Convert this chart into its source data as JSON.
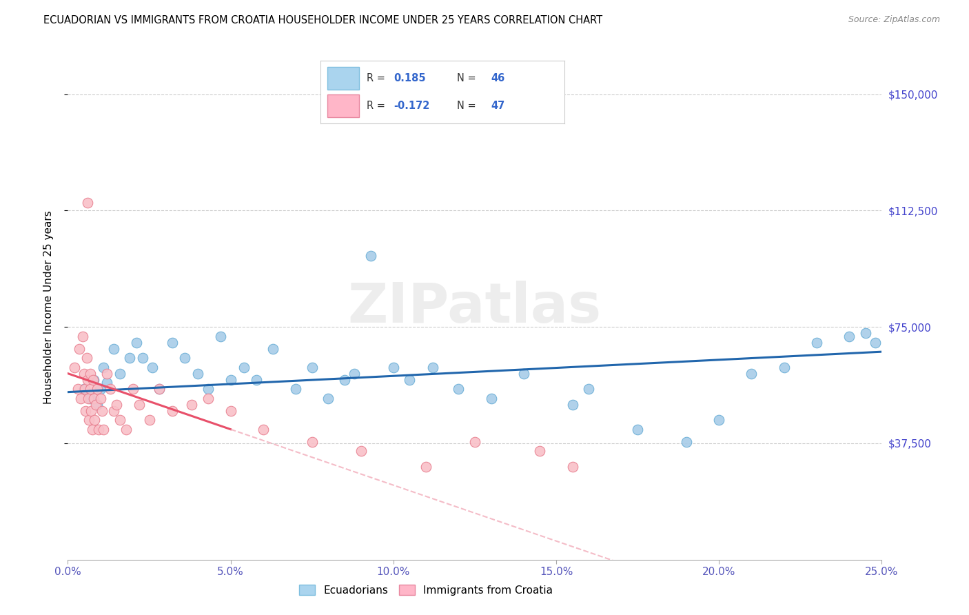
{
  "title": "ECUADORIAN VS IMMIGRANTS FROM CROATIA HOUSEHOLDER INCOME UNDER 25 YEARS CORRELATION CHART",
  "source": "Source: ZipAtlas.com",
  "ylabel": "Householder Income Under 25 years",
  "ytick_labels": [
    "$37,500",
    "$75,000",
    "$112,500",
    "$150,000"
  ],
  "ytick_vals": [
    37500,
    75000,
    112500,
    150000
  ],
  "ylim": [
    0,
    162500
  ],
  "xlim": [
    0,
    25.0
  ],
  "xtick_vals": [
    0,
    5,
    10,
    15,
    20,
    25
  ],
  "xtick_labels": [
    "0.0%",
    "5.0%",
    "10.0%",
    "15.0%",
    "20.0%",
    "25.0%"
  ],
  "blue_scatter_color": "#a8cce8",
  "blue_edge_color": "#6aaed6",
  "pink_scatter_color": "#f9c0c8",
  "pink_edge_color": "#e88090",
  "blue_line_color": "#2166ac",
  "pink_solid_color": "#e8506a",
  "pink_dashed_color": "#f0a0b0",
  "watermark": "ZIPatlas",
  "r_blue": "0.185",
  "n_blue": "46",
  "r_pink": "-0.172",
  "n_pink": "47",
  "ecu_x": [
    0.5,
    0.7,
    0.8,
    0.9,
    1.0,
    1.1,
    1.2,
    1.4,
    1.6,
    1.9,
    2.1,
    2.3,
    2.6,
    2.8,
    3.2,
    3.6,
    4.0,
    4.3,
    4.7,
    5.0,
    5.4,
    5.8,
    6.3,
    7.0,
    7.5,
    8.0,
    8.5,
    9.3,
    10.0,
    10.5,
    11.2,
    12.0,
    13.0,
    14.0,
    15.5,
    16.0,
    17.5,
    19.0,
    20.0,
    21.0,
    22.0,
    23.0,
    24.0,
    24.5,
    24.8,
    8.8
  ],
  "ecu_y": [
    55000,
    52000,
    58000,
    50000,
    55000,
    62000,
    57000,
    68000,
    60000,
    65000,
    70000,
    65000,
    62000,
    55000,
    70000,
    65000,
    60000,
    55000,
    72000,
    58000,
    62000,
    58000,
    68000,
    55000,
    62000,
    52000,
    58000,
    98000,
    62000,
    58000,
    62000,
    55000,
    52000,
    60000,
    50000,
    55000,
    42000,
    38000,
    45000,
    60000,
    62000,
    70000,
    72000,
    73000,
    70000,
    60000
  ],
  "cro_x": [
    0.2,
    0.3,
    0.35,
    0.4,
    0.45,
    0.5,
    0.52,
    0.55,
    0.58,
    0.6,
    0.62,
    0.65,
    0.68,
    0.7,
    0.72,
    0.75,
    0.78,
    0.8,
    0.82,
    0.85,
    0.9,
    0.95,
    1.0,
    1.05,
    1.1,
    1.2,
    1.3,
    1.4,
    1.5,
    1.6,
    1.8,
    2.0,
    2.2,
    2.5,
    2.8,
    3.2,
    3.8,
    4.3,
    5.0,
    6.0,
    7.5,
    9.0,
    11.0,
    12.5,
    14.5,
    15.5,
    0.6
  ],
  "cro_y": [
    62000,
    55000,
    68000,
    52000,
    72000,
    60000,
    55000,
    48000,
    65000,
    58000,
    52000,
    45000,
    60000,
    55000,
    48000,
    42000,
    58000,
    52000,
    45000,
    50000,
    55000,
    42000,
    52000,
    48000,
    42000,
    60000,
    55000,
    48000,
    50000,
    45000,
    42000,
    55000,
    50000,
    45000,
    55000,
    48000,
    50000,
    52000,
    48000,
    42000,
    38000,
    35000,
    30000,
    38000,
    35000,
    30000,
    115000
  ]
}
